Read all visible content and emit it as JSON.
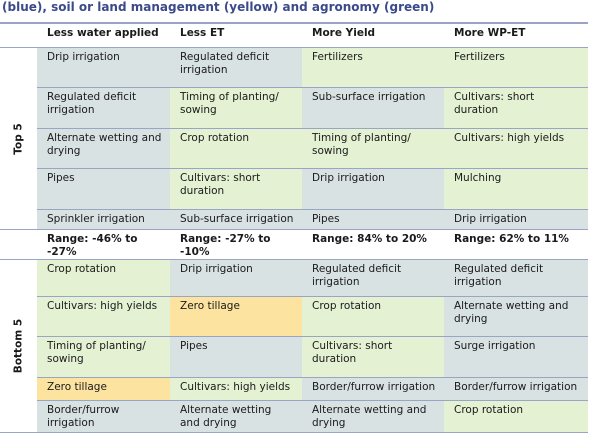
{
  "title": "(blue), soil or land management (yellow) and agronomy (green)",
  "columns": [
    "Less water applied",
    "Less ET",
    "More Yield",
    "More WP-ET"
  ],
  "top_label": "Top 5",
  "bottom_label": "Bottom 5",
  "colors": {
    "blue": "#d9e2e3",
    "green": "#e4f1d2",
    "yellow": "#fde3a0"
  },
  "top": [
    [
      {
        "t": "Drip irrigation",
        "c": "blue"
      },
      {
        "t": "Regulated deficit irrigation",
        "c": "blue"
      },
      {
        "t": "Fertilizers",
        "c": "green"
      },
      {
        "t": "Fertilizers",
        "c": "green"
      }
    ],
    [
      {
        "t": "Regulated deficit irrigation",
        "c": "blue"
      },
      {
        "t": "Timing of planting/ sowing",
        "c": "green"
      },
      {
        "t": "Sub-surface irrigation",
        "c": "blue"
      },
      {
        "t": "Cultivars: short duration",
        "c": "green"
      }
    ],
    [
      {
        "t": "Alternate wetting and drying",
        "c": "blue"
      },
      {
        "t": "Crop rotation",
        "c": "green"
      },
      {
        "t": "Timing of planting/ sowing",
        "c": "green"
      },
      {
        "t": "Cultivars: high yields",
        "c": "green"
      }
    ],
    [
      {
        "t": "Pipes",
        "c": "blue"
      },
      {
        "t": "Cultivars: short duration",
        "c": "green"
      },
      {
        "t": "Drip irrigation",
        "c": "blue"
      },
      {
        "t": "Mulching",
        "c": "green"
      }
    ],
    [
      {
        "t": "Sprinkler irrigation",
        "c": "blue"
      },
      {
        "t": "Sub-surface irrigation",
        "c": "blue"
      },
      {
        "t": "Pipes",
        "c": "blue"
      },
      {
        "t": "Drip irrigation",
        "c": "blue"
      }
    ]
  ],
  "ranges": [
    "Range: -46% to -27%",
    "Range: -27% to -10%",
    "Range: 84% to 20%",
    "Range: 62% to 11%"
  ],
  "bottom": [
    [
      {
        "t": "Crop rotation",
        "c": "green"
      },
      {
        "t": "Drip irrigation",
        "c": "blue"
      },
      {
        "t": "Regulated deficit irrigation",
        "c": "blue"
      },
      {
        "t": "Regulated deficit irrigation",
        "c": "blue"
      }
    ],
    [
      {
        "t": "Cultivars: high yields",
        "c": "green"
      },
      {
        "t": "Zero tillage",
        "c": "yellow"
      },
      {
        "t": "Crop rotation",
        "c": "green"
      },
      {
        "t": "Alternate wetting and drying",
        "c": "blue"
      }
    ],
    [
      {
        "t": "Timing of planting/ sowing",
        "c": "green"
      },
      {
        "t": "Pipes",
        "c": "blue"
      },
      {
        "t": "Cultivars: short duration",
        "c": "green"
      },
      {
        "t": "Surge irrigation",
        "c": "blue"
      }
    ],
    [
      {
        "t": "Zero tillage",
        "c": "yellow"
      },
      {
        "t": "Cultivars: high yields",
        "c": "green"
      },
      {
        "t": "Border/furrow irrigation",
        "c": "blue"
      },
      {
        "t": "Border/furrow irrigation",
        "c": "blue"
      }
    ],
    [
      {
        "t": "Border/furrow irrigation",
        "c": "blue"
      },
      {
        "t": "Alternate wetting and drying",
        "c": "blue"
      },
      {
        "t": "Alternate wetting and drying",
        "c": "blue"
      },
      {
        "t": "Crop rotation",
        "c": "green"
      }
    ]
  ]
}
